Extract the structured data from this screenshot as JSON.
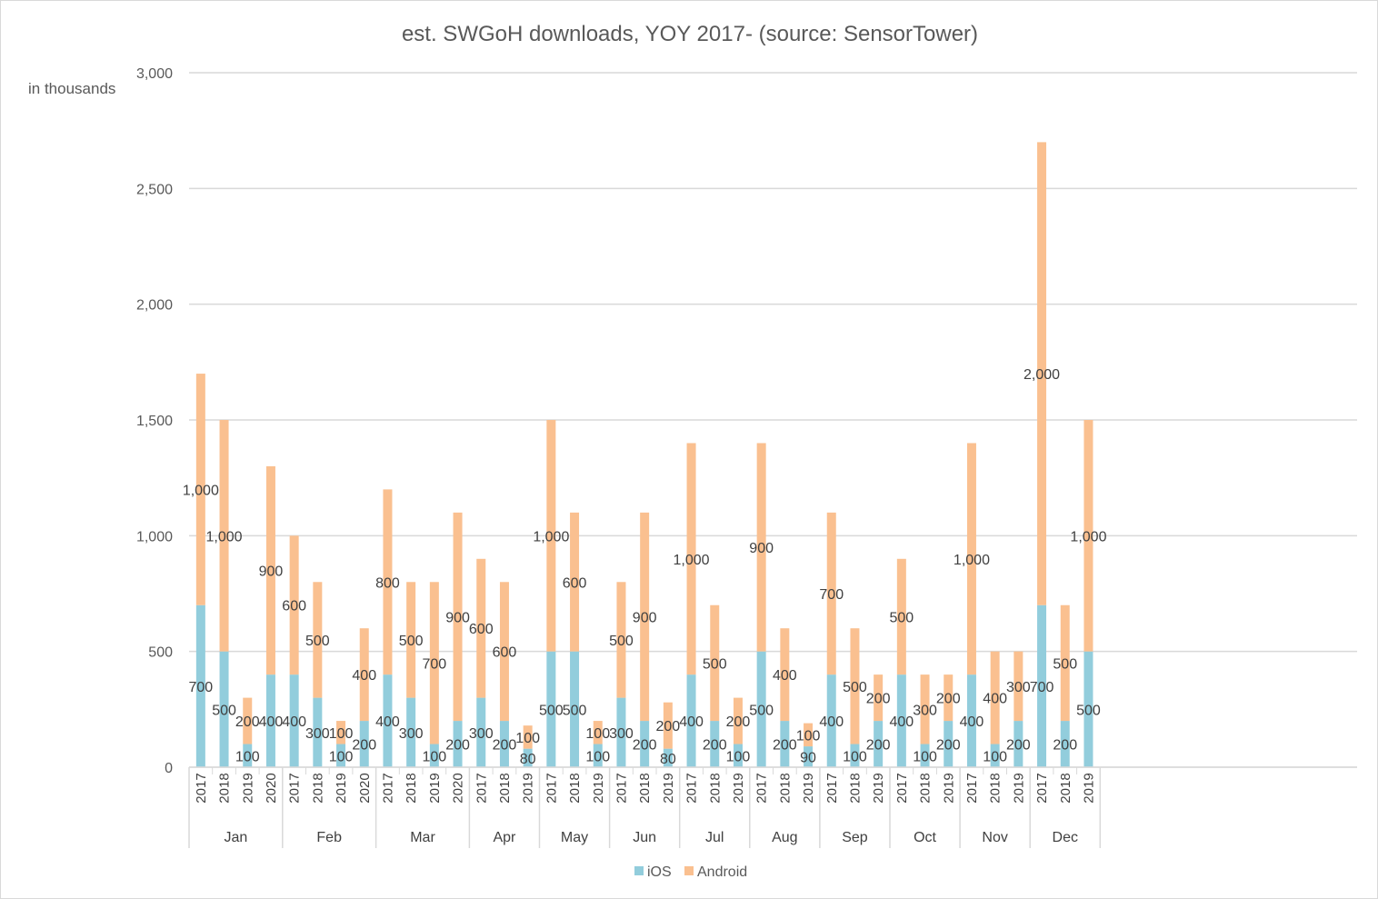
{
  "chart_data": {
    "type": "bar",
    "stacked": true,
    "title": "est. SWGoH downloads, YOY 2017- (source: SensorTower)",
    "unit_label": "in thousands",
    "ylim": [
      0,
      3000
    ],
    "yticks": [
      "0",
      "500",
      "1,000",
      "1,500",
      "2,000",
      "2,500",
      "3,000"
    ],
    "ytick_values": [
      0,
      500,
      1000,
      1500,
      2000,
      2500,
      3000
    ],
    "grid": true,
    "legend_position": "bottom",
    "series": [
      {
        "name": "iOS",
        "color": "#92cddc"
      },
      {
        "name": "Android",
        "color": "#fac090"
      }
    ],
    "months": [
      {
        "month": "Jan",
        "bars": [
          {
            "year": "2017",
            "ios": 700,
            "android": 1000,
            "ios_label": "700",
            "android_label": "1,000"
          },
          {
            "year": "2018",
            "ios": 500,
            "android": 1000,
            "ios_label": "500",
            "android_label": "1,000"
          },
          {
            "year": "2019",
            "ios": 100,
            "android": 200,
            "ios_label": "100",
            "android_label": "200"
          },
          {
            "year": "2020",
            "ios": 400,
            "android": 900,
            "ios_label": "400",
            "android_label": "900"
          }
        ]
      },
      {
        "month": "Feb",
        "bars": [
          {
            "year": "2017",
            "ios": 400,
            "android": 600,
            "ios_label": "400",
            "android_label": "600"
          },
          {
            "year": "2018",
            "ios": 300,
            "android": 500,
            "ios_label": "300",
            "android_label": "500"
          },
          {
            "year": "2019",
            "ios": 100,
            "android": 100,
            "ios_label": "100",
            "android_label": "100"
          },
          {
            "year": "2020",
            "ios": 200,
            "android": 400,
            "ios_label": "200",
            "android_label": "400"
          }
        ]
      },
      {
        "month": "Mar",
        "bars": [
          {
            "year": "2017",
            "ios": 400,
            "android": 800,
            "ios_label": "400",
            "android_label": "800"
          },
          {
            "year": "2018",
            "ios": 300,
            "android": 500,
            "ios_label": "300",
            "android_label": "500"
          },
          {
            "year": "2019",
            "ios": 100,
            "android": 700,
            "ios_label": "100",
            "android_label": "700"
          },
          {
            "year": "2020",
            "ios": 200,
            "android": 900,
            "ios_label": "200",
            "android_label": "900"
          }
        ]
      },
      {
        "month": "Apr",
        "bars": [
          {
            "year": "2017",
            "ios": 300,
            "android": 600,
            "ios_label": "300",
            "android_label": "600"
          },
          {
            "year": "2018",
            "ios": 200,
            "android": 600,
            "ios_label": "200",
            "android_label": "600"
          },
          {
            "year": "2019",
            "ios": 80,
            "android": 100,
            "ios_label": "80",
            "android_label": "100"
          }
        ]
      },
      {
        "month": "May",
        "bars": [
          {
            "year": "2017",
            "ios": 500,
            "android": 1000,
            "ios_label": "500",
            "android_label": "1,000"
          },
          {
            "year": "2018",
            "ios": 500,
            "android": 600,
            "ios_label": "500",
            "android_label": "600"
          },
          {
            "year": "2019",
            "ios": 100,
            "android": 100,
            "ios_label": "100",
            "android_label": "100"
          }
        ]
      },
      {
        "month": "Jun",
        "bars": [
          {
            "year": "2017",
            "ios": 300,
            "android": 500,
            "ios_label": "300",
            "android_label": "500"
          },
          {
            "year": "2018",
            "ios": 200,
            "android": 900,
            "ios_label": "200",
            "android_label": "900"
          },
          {
            "year": "2019",
            "ios": 80,
            "android": 200,
            "ios_label": "80",
            "android_label": "200"
          }
        ]
      },
      {
        "month": "Jul",
        "bars": [
          {
            "year": "2017",
            "ios": 400,
            "android": 1000,
            "ios_label": "400",
            "android_label": "1,000"
          },
          {
            "year": "2018",
            "ios": 200,
            "android": 500,
            "ios_label": "200",
            "android_label": "500"
          },
          {
            "year": "2019",
            "ios": 100,
            "android": 200,
            "ios_label": "100",
            "android_label": "200"
          }
        ]
      },
      {
        "month": "Aug",
        "bars": [
          {
            "year": "2017",
            "ios": 500,
            "android": 900,
            "ios_label": "500",
            "android_label": "900"
          },
          {
            "year": "2018",
            "ios": 200,
            "android": 400,
            "ios_label": "200",
            "android_label": "400"
          },
          {
            "year": "2019",
            "ios": 90,
            "android": 100,
            "ios_label": "90",
            "android_label": "100"
          }
        ]
      },
      {
        "month": "Sep",
        "bars": [
          {
            "year": "2017",
            "ios": 400,
            "android": 700,
            "ios_label": "400",
            "android_label": "700"
          },
          {
            "year": "2018",
            "ios": 100,
            "android": 500,
            "ios_label": "100",
            "android_label": "500"
          },
          {
            "year": "2019",
            "ios": 200,
            "android": 200,
            "ios_label": "200",
            "android_label": "200"
          }
        ]
      },
      {
        "month": "Oct",
        "bars": [
          {
            "year": "2017",
            "ios": 400,
            "android": 500,
            "ios_label": "400",
            "android_label": "500"
          },
          {
            "year": "2018",
            "ios": 100,
            "android": 300,
            "ios_label": "100",
            "android_label": "300"
          },
          {
            "year": "2019",
            "ios": 200,
            "android": 200,
            "ios_label": "200",
            "android_label": "200"
          }
        ]
      },
      {
        "month": "Nov",
        "bars": [
          {
            "year": "2017",
            "ios": 400,
            "android": 1000,
            "ios_label": "400",
            "android_label": "1,000"
          },
          {
            "year": "2018",
            "ios": 100,
            "android": 400,
            "ios_label": "100",
            "android_label": "400"
          },
          {
            "year": "2019",
            "ios": 200,
            "android": 300,
            "ios_label": "200",
            "android_label": "300"
          }
        ]
      },
      {
        "month": "Dec",
        "bars": [
          {
            "year": "2017",
            "ios": 700,
            "android": 2000,
            "ios_label": "700",
            "android_label": "2,000"
          },
          {
            "year": "2018",
            "ios": 200,
            "android": 500,
            "ios_label": "200",
            "android_label": "500"
          },
          {
            "year": "2019",
            "ios": 500,
            "android": 1000,
            "ios_label": "500",
            "android_label": "1,000"
          }
        ]
      }
    ]
  }
}
